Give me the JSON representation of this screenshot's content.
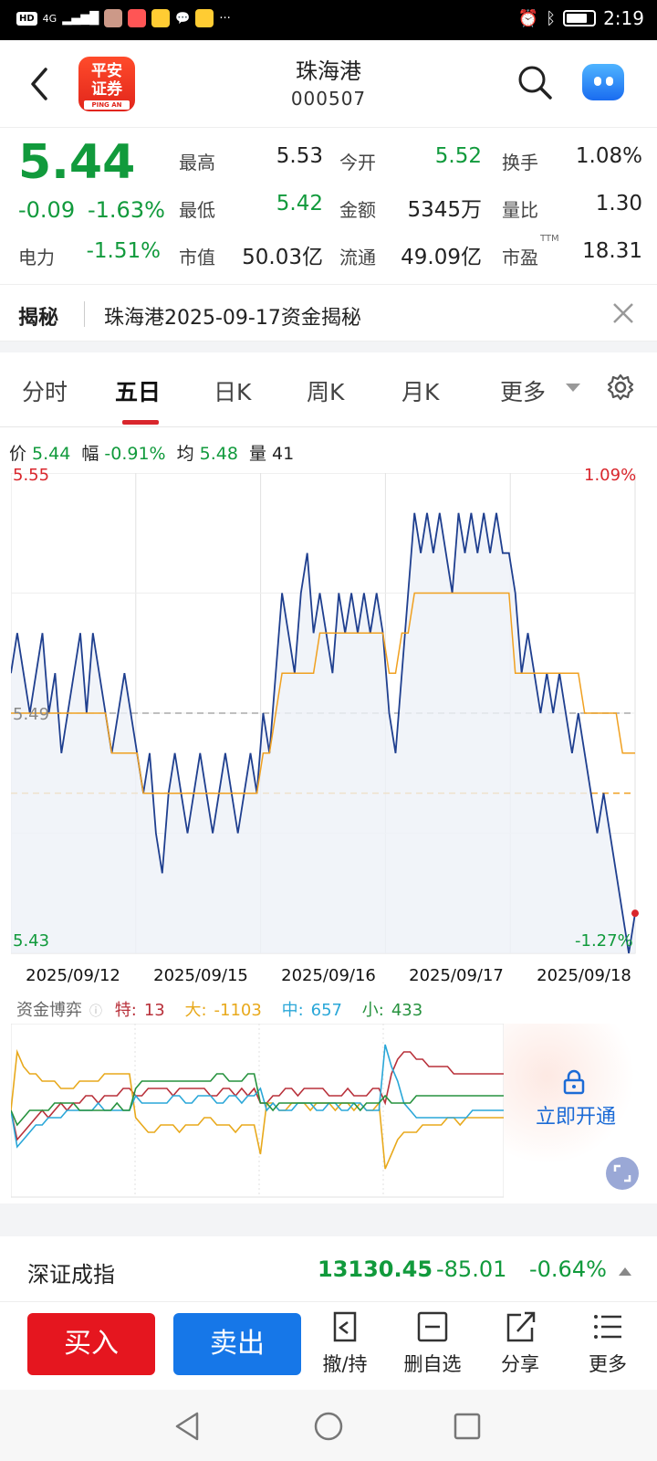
{
  "status_bar": {
    "time": "2:19",
    "network": "4G"
  },
  "header": {
    "stock_name": "珠海港",
    "stock_code": "000507",
    "logo_line1": "平安",
    "logo_line2": "证券",
    "logo_sub": "PING AN"
  },
  "quote": {
    "price": "5.44",
    "change": "-0.09",
    "change_pct": "-1.63%",
    "sector_label": "电力",
    "sector_pct": "-1.51%",
    "high_label": "最高",
    "high": "5.53",
    "low_label": "最低",
    "low": "5.42",
    "mktcap_label": "市值",
    "mktcap": "50.03亿",
    "open_label": "今开",
    "open": "5.52",
    "amount_label": "金额",
    "amount": "5345万",
    "float_label": "流通",
    "float": "49.09亿",
    "turnover_label": "换手",
    "turnover": "1.08%",
    "volratio_label": "量比",
    "volratio": "1.30",
    "pe_label": "市盈",
    "pe_sup": "TTM",
    "pe": "18.31"
  },
  "reveal": {
    "tag": "揭秘",
    "text": "珠海港2025-09-17资金揭秘"
  },
  "tabs": [
    "分时",
    "五日",
    "日K",
    "周K",
    "月K",
    "更多"
  ],
  "info": {
    "price_label": "价",
    "price": "5.44",
    "amp_label": "幅",
    "amp": "-0.91%",
    "avg_label": "均",
    "avg": "5.48",
    "vol_label": "量",
    "vol": "41"
  },
  "chart_data": {
    "type": "line",
    "title": "",
    "ylim": [
      5.43,
      5.55
    ],
    "y_max_label": "5.55",
    "y_min_label": "5.43",
    "pct_max_label": "1.09%",
    "pct_min_label": "-1.27%",
    "mid_label": "5.49",
    "x_labels": [
      "2025/09/12",
      "2025/09/15",
      "2025/09/16",
      "2025/09/17",
      "2025/09/18"
    ],
    "series": [
      {
        "color": "#1f3f8f",
        "values": [
          5.5,
          5.51,
          5.5,
          5.49,
          5.5,
          5.51,
          5.49,
          5.5,
          5.48,
          5.49,
          5.5,
          5.51,
          5.49,
          5.51,
          5.5,
          5.49,
          5.48,
          5.49,
          5.5,
          5.49,
          5.48,
          5.47,
          5.48,
          5.46,
          5.45,
          5.47,
          5.48,
          5.47,
          5.46,
          5.47,
          5.48,
          5.47,
          5.46,
          5.47,
          5.48,
          5.47,
          5.46,
          5.47,
          5.48,
          5.47,
          5.49,
          5.48,
          5.5,
          5.52,
          5.51,
          5.5,
          5.52,
          5.53,
          5.51,
          5.52,
          5.51,
          5.5,
          5.52,
          5.51,
          5.52,
          5.51,
          5.52,
          5.51,
          5.52,
          5.51,
          5.49,
          5.48,
          5.5,
          5.52,
          5.54,
          5.53,
          5.54,
          5.53,
          5.54,
          5.53,
          5.52,
          5.54,
          5.53,
          5.54,
          5.53,
          5.54,
          5.53,
          5.54,
          5.53,
          5.53,
          5.52,
          5.5,
          5.51,
          5.5,
          5.49,
          5.5,
          5.49,
          5.5,
          5.49,
          5.48,
          5.49,
          5.48,
          5.47,
          5.46,
          5.47,
          5.46,
          5.45,
          5.44,
          5.43,
          5.44
        ]
      },
      {
        "color": "#f0a020",
        "values": [
          5.49,
          5.49,
          5.49,
          5.49,
          5.49,
          5.49,
          5.49,
          5.49,
          5.49,
          5.49,
          5.49,
          5.49,
          5.49,
          5.49,
          5.49,
          5.49,
          5.48,
          5.48,
          5.48,
          5.48,
          5.48,
          5.47,
          5.47,
          5.47,
          5.47,
          5.47,
          5.47,
          5.47,
          5.47,
          5.47,
          5.47,
          5.47,
          5.47,
          5.47,
          5.47,
          5.47,
          5.47,
          5.47,
          5.47,
          5.47,
          5.48,
          5.48,
          5.49,
          5.5,
          5.5,
          5.5,
          5.5,
          5.5,
          5.5,
          5.51,
          5.51,
          5.51,
          5.51,
          5.51,
          5.51,
          5.51,
          5.51,
          5.51,
          5.51,
          5.51,
          5.5,
          5.5,
          5.51,
          5.51,
          5.52,
          5.52,
          5.52,
          5.52,
          5.52,
          5.52,
          5.52,
          5.52,
          5.52,
          5.52,
          5.52,
          5.52,
          5.52,
          5.52,
          5.52,
          5.52,
          5.5,
          5.5,
          5.5,
          5.5,
          5.5,
          5.5,
          5.5,
          5.5,
          5.5,
          5.5,
          5.5,
          5.49,
          5.49,
          5.49,
          5.49,
          5.49,
          5.49,
          5.48,
          5.48,
          5.48
        ]
      }
    ],
    "ref_line_prev_close": 5.49,
    "ref_line_avg": 5.47
  },
  "capital": {
    "title": "资金博弈",
    "special_label": "特:",
    "special": "13",
    "large_label": "大:",
    "large": "-1103",
    "mid_label": "中:",
    "mid": "657",
    "small_label": "小:",
    "small": "433",
    "unlock_text": "立即开通",
    "colors": {
      "special": "#b8303a",
      "large": "#e8a91c",
      "mid": "#2aa7d8",
      "small": "#26923e"
    },
    "series": {
      "special": [
        0,
        -0.4,
        -0.3,
        -0.2,
        -0.1,
        0,
        -0.1,
        0,
        0.1,
        0,
        0.1,
        0.1,
        0.2,
        0.2,
        0.1,
        0.2,
        0.2,
        0.2,
        0.3,
        0.3,
        0.2,
        0.2,
        0.3,
        0.3,
        0.3,
        0.3,
        0.2,
        0.3,
        0.3,
        0.3,
        0.3,
        0.3,
        0.2,
        0.2,
        0.3,
        0.3,
        0.2,
        0.3,
        0.2,
        0.3,
        0.1,
        0.1,
        0.2,
        0.2,
        0.3,
        0.3,
        0.2,
        0.3,
        0.3,
        0.3,
        0.3,
        0.2,
        0.2,
        0.2,
        0.3,
        0.2,
        0.2,
        0.2,
        0.3,
        0.3,
        0.1,
        0.5,
        0.7,
        0.8,
        0.8,
        0.7,
        0.7,
        0.6,
        0.6,
        0.6,
        0.6,
        0.5,
        0.5,
        0.5,
        0.5,
        0.5,
        0.5,
        0.5,
        0.5,
        0.5
      ],
      "large": [
        0,
        0.8,
        0.6,
        0.5,
        0.5,
        0.4,
        0.4,
        0.4,
        0.3,
        0.3,
        0.3,
        0.4,
        0.4,
        0.4,
        0.4,
        0.5,
        0.5,
        0.5,
        0.5,
        0.5,
        -0.1,
        -0.2,
        -0.3,
        -0.3,
        -0.2,
        -0.2,
        -0.2,
        -0.3,
        -0.2,
        -0.2,
        -0.2,
        -0.1,
        -0.1,
        -0.2,
        -0.2,
        -0.2,
        -0.3,
        -0.2,
        -0.2,
        -0.2,
        -0.6,
        0.1,
        0.1,
        0.0,
        0.0,
        0.1,
        0.1,
        0.1,
        0.0,
        0.1,
        0.1,
        0.1,
        0.0,
        0.1,
        0.1,
        0.0,
        0.1,
        0.0,
        0.0,
        0.1,
        -0.8,
        -0.6,
        -0.4,
        -0.3,
        -0.3,
        -0.3,
        -0.2,
        -0.2,
        -0.2,
        -0.2,
        -0.1,
        -0.1,
        -0.2,
        -0.1,
        -0.1,
        -0.1,
        -0.1,
        -0.1,
        -0.1,
        -0.1
      ],
      "mid": [
        0,
        -0.5,
        -0.4,
        -0.3,
        -0.2,
        -0.2,
        -0.1,
        -0.1,
        -0.1,
        0,
        0,
        0,
        0,
        0,
        0.1,
        0,
        0,
        0,
        0,
        0,
        0.2,
        0.1,
        0.1,
        0.1,
        0.1,
        0.1,
        0.2,
        0.2,
        0.1,
        0.1,
        0.2,
        0.2,
        0.2,
        0.1,
        0.1,
        0.2,
        0.2,
        0.1,
        0.2,
        0.2,
        0.3,
        0.0,
        0.1,
        0.0,
        0.0,
        0.0,
        0.1,
        0.1,
        0.1,
        0.0,
        0.0,
        0.1,
        0.1,
        0.0,
        0.0,
        0.1,
        0.1,
        0.0,
        0.0,
        0.0,
        0.9,
        0.6,
        0.4,
        0.1,
        0.0,
        -0.1,
        -0.1,
        -0.1,
        -0.1,
        -0.1,
        -0.1,
        -0.1,
        -0.1,
        -0.1,
        0.0,
        0.0,
        0.0,
        0.0,
        0.0,
        0.0
      ],
      "small": [
        0,
        -0.2,
        -0.1,
        0,
        0,
        0,
        0,
        0.1,
        0.1,
        0.1,
        0.1,
        0,
        0,
        0,
        0,
        0,
        0,
        0.1,
        0,
        0,
        0.3,
        0.4,
        0.4,
        0.4,
        0.4,
        0.4,
        0.4,
        0.4,
        0.4,
        0.4,
        0.4,
        0.4,
        0.4,
        0.5,
        0.5,
        0.4,
        0.4,
        0.4,
        0.5,
        0.5,
        0.1,
        0.1,
        0.0,
        0.1,
        0.1,
        0.1,
        0.1,
        0.1,
        0.1,
        0.1,
        0.1,
        0.1,
        0.1,
        0.1,
        0.1,
        0.1,
        0.0,
        0.1,
        0.1,
        0.1,
        0.2,
        0.1,
        0.1,
        0.1,
        0.1,
        0.2,
        0.2,
        0.2,
        0.2,
        0.2,
        0.2,
        0.2,
        0.2,
        0.2,
        0.2,
        0.2,
        0.2,
        0.2,
        0.2,
        0.2
      ]
    }
  },
  "index_bar": {
    "name": "深证成指",
    "value": "13130.45",
    "change": "-85.01",
    "change_pct": "-0.64%"
  },
  "actions": {
    "buy": "买入",
    "sell": "卖出",
    "hold": "撤/持",
    "remove": "删自选",
    "share": "分享",
    "more": "更多"
  }
}
